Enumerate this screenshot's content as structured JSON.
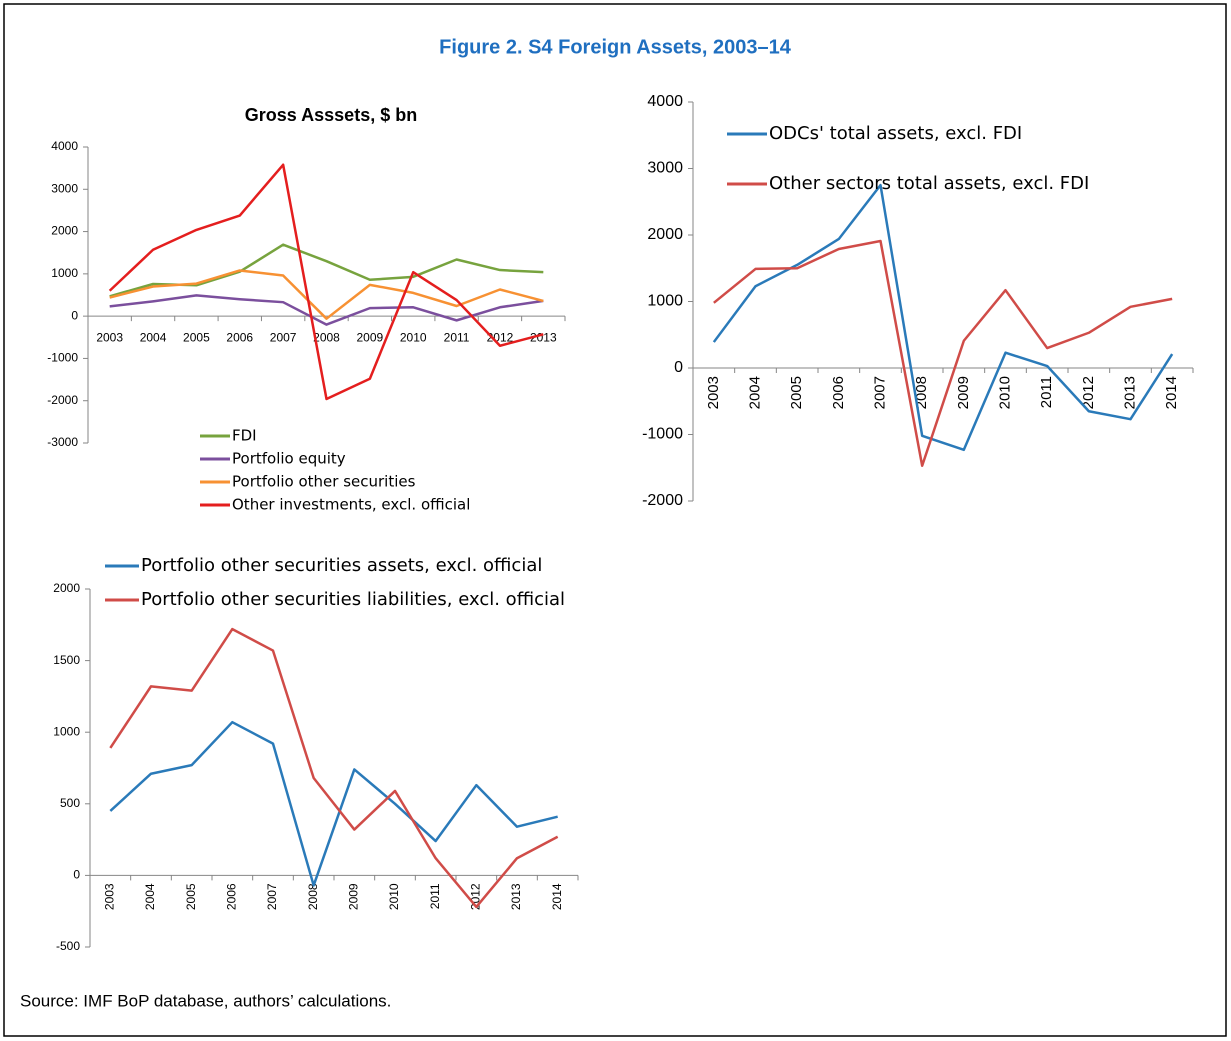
{
  "figure_title": "Figure 2. S4 Foreign Assets, 2003–14",
  "source": "Source: IMF BoP database, authors’ calculations.",
  "chart_data": [
    {
      "type": "line",
      "title": "Gross Asssets, $ bn",
      "categories": [
        "2003",
        "2004",
        "2005",
        "2006",
        "2007",
        "2008",
        "2009",
        "2010",
        "2011",
        "2012",
        "2013"
      ],
      "series": [
        {
          "name": "FDI",
          "color": "#77a33e",
          "values": [
            470,
            760,
            730,
            1050,
            1690,
            1300,
            860,
            930,
            1340,
            1090,
            1040
          ]
        },
        {
          "name": "Portfolio equity",
          "color": "#7b4f9d",
          "values": [
            230,
            350,
            490,
            400,
            330,
            -200,
            190,
            210,
            -100,
            210,
            360
          ]
        },
        {
          "name": "Portfolio other securities",
          "color": "#f79133",
          "values": [
            440,
            700,
            770,
            1080,
            960,
            -60,
            740,
            550,
            240,
            630,
            360
          ]
        },
        {
          "name": "Other investments, excl. official",
          "color": "#e41e1e",
          "values": [
            600,
            1570,
            2040,
            2380,
            3580,
            -1960,
            -1480,
            1040,
            380,
            -700,
            -430
          ]
        }
      ],
      "ylim": [
        -3000,
        4000
      ],
      "yticks": [
        -3000,
        -2000,
        -1000,
        0,
        1000,
        2000,
        3000,
        4000
      ],
      "legend": "bottom"
    },
    {
      "type": "line",
      "categories": [
        "2003",
        "2004",
        "2005",
        "2006",
        "2007",
        "2008",
        "2009",
        "2010",
        "2011",
        "2012",
        "2013",
        "2014"
      ],
      "series": [
        {
          "name": "ODCs' total assets, excl. FDI",
          "color": "#2a7ab9",
          "values": [
            390,
            1230,
            1550,
            1940,
            2750,
            -1020,
            -1230,
            230,
            30,
            -650,
            -770,
            210
          ]
        },
        {
          "name": "Other sectors total assets, excl. FDI",
          "color": "#d04c48",
          "values": [
            980,
            1490,
            1500,
            1790,
            1910,
            -1470,
            410,
            1170,
            300,
            530,
            920,
            1040
          ]
        }
      ],
      "ylim": [
        -2000,
        4000
      ],
      "yticks": [
        -2000,
        -1000,
        0,
        1000,
        2000,
        3000,
        4000
      ],
      "legend": "top"
    },
    {
      "type": "line",
      "categories": [
        "2003",
        "2004",
        "2005",
        "2006",
        "2007",
        "2008",
        "2009",
        "2010",
        "2011",
        "2012",
        "2013",
        "2014"
      ],
      "series": [
        {
          "name": "Portfolio other securities assets, excl. official",
          "color": "#2a7ab9",
          "values": [
            450,
            710,
            770,
            1070,
            920,
            -70,
            740,
            500,
            240,
            630,
            340,
            410
          ]
        },
        {
          "name": "Portfolio other securities liabilities, excl. official",
          "color": "#d04c48",
          "values": [
            890,
            1320,
            1290,
            1720,
            1570,
            680,
            320,
            590,
            120,
            -220,
            120,
            270
          ]
        }
      ],
      "ylim": [
        -500,
        2000
      ],
      "yticks": [
        -500,
        0,
        500,
        1000,
        1500,
        2000
      ],
      "legend": "top"
    }
  ]
}
